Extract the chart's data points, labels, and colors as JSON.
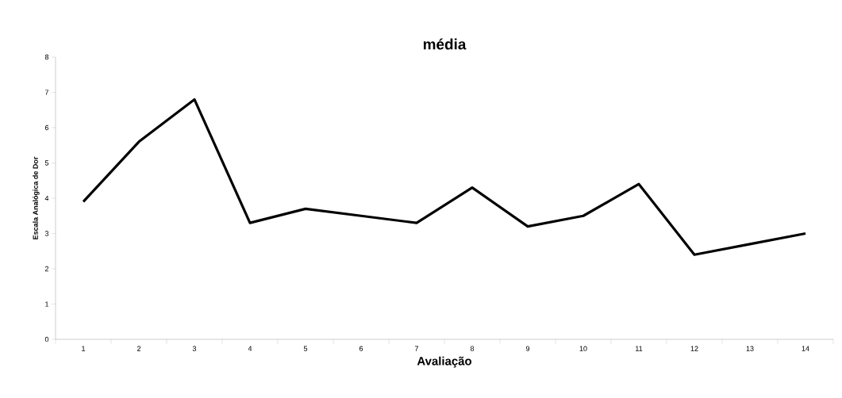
{
  "chart_data": {
    "type": "line",
    "title": "média",
    "xlabel": "Avaliação",
    "ylabel": "Escala Analógica de Dor",
    "categories": [
      "1",
      "2",
      "3",
      "4",
      "5",
      "6",
      "7",
      "8",
      "9",
      "10",
      "11",
      "12",
      "13",
      "14"
    ],
    "values": [
      3.9,
      5.6,
      6.8,
      3.3,
      3.7,
      3.5,
      3.3,
      4.3,
      3.2,
      3.5,
      4.4,
      2.4,
      2.7,
      3.0
    ],
    "color": "#000000",
    "marker": "none",
    "line_style": "solid",
    "ylim": [
      0,
      8
    ],
    "yticks": [
      0,
      1,
      2,
      3,
      4,
      5,
      6,
      7,
      8
    ]
  }
}
